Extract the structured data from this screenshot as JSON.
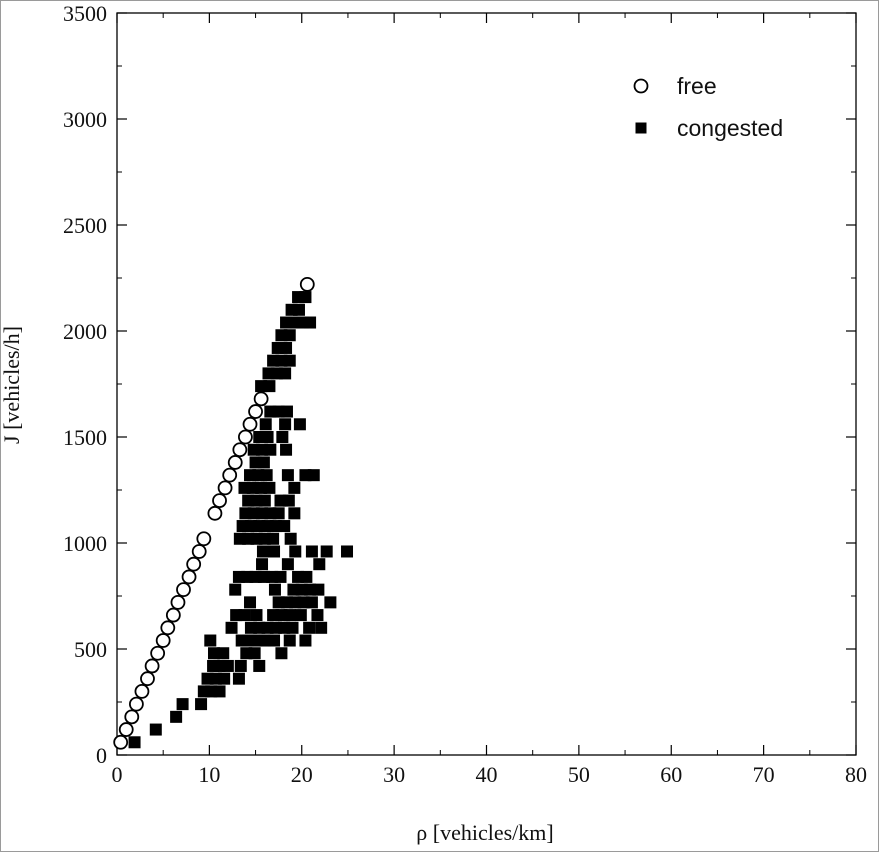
{
  "chart_data": {
    "type": "scatter",
    "xlabel": "ρ [vehicles/km]",
    "ylabel": "J [vehicles/h]",
    "xlim": [
      0,
      80
    ],
    "ylim": [
      0,
      3500
    ],
    "xticks": [
      0,
      10,
      20,
      30,
      40,
      50,
      60,
      70,
      80
    ],
    "yticks": [
      0,
      500,
      1000,
      1500,
      2000,
      2500,
      3000,
      3500
    ],
    "xtick_labels": [
      "0",
      "10",
      "20",
      "30",
      "40",
      "50",
      "60",
      "70",
      "80"
    ],
    "ytick_labels": [
      "0",
      "500",
      "1000",
      "1500",
      "2000",
      "2500",
      "3000",
      "3500"
    ],
    "grid": false,
    "legend_position": "top-right",
    "series": [
      {
        "name": "free",
        "marker": "open-circle",
        "color": "#000000",
        "points": [
          [
            0.4,
            60
          ],
          [
            1.0,
            120
          ],
          [
            1.6,
            180
          ],
          [
            2.1,
            240
          ],
          [
            2.7,
            300
          ],
          [
            3.3,
            360
          ],
          [
            3.8,
            420
          ],
          [
            4.4,
            480
          ],
          [
            5.0,
            540
          ],
          [
            5.5,
            600
          ],
          [
            6.1,
            660
          ],
          [
            6.6,
            720
          ],
          [
            7.2,
            780
          ],
          [
            7.8,
            840
          ],
          [
            8.3,
            900
          ],
          [
            8.9,
            960
          ],
          [
            9.4,
            1020
          ],
          [
            10.6,
            1140
          ],
          [
            11.1,
            1200
          ],
          [
            11.7,
            1260
          ],
          [
            12.2,
            1320
          ],
          [
            12.8,
            1380
          ],
          [
            13.3,
            1440
          ],
          [
            13.9,
            1500
          ],
          [
            14.4,
            1560
          ],
          [
            15.0,
            1620
          ],
          [
            15.6,
            1680
          ],
          [
            20.6,
            2220
          ]
        ]
      },
      {
        "name": "congested",
        "marker": "filled-square",
        "color": "#000000",
        "points": [
          [
            1.9,
            60
          ],
          [
            4.2,
            120
          ],
          [
            6.4,
            180
          ],
          [
            7.1,
            240
          ],
          [
            9.1,
            240
          ],
          [
            9.4,
            300
          ],
          [
            10.2,
            300
          ],
          [
            11.1,
            300
          ],
          [
            9.8,
            360
          ],
          [
            10.7,
            360
          ],
          [
            11.6,
            360
          ],
          [
            13.2,
            360
          ],
          [
            10.4,
            420
          ],
          [
            11.1,
            420
          ],
          [
            12.0,
            420
          ],
          [
            13.4,
            420
          ],
          [
            15.4,
            420
          ],
          [
            10.5,
            480
          ],
          [
            11.5,
            480
          ],
          [
            14.0,
            480
          ],
          [
            14.9,
            480
          ],
          [
            17.8,
            480
          ],
          [
            10.1,
            540
          ],
          [
            13.5,
            540
          ],
          [
            14.2,
            540
          ],
          [
            15.1,
            540
          ],
          [
            16.0,
            540
          ],
          [
            17.0,
            540
          ],
          [
            18.7,
            540
          ],
          [
            20.4,
            540
          ],
          [
            12.4,
            600
          ],
          [
            14.5,
            600
          ],
          [
            15.4,
            600
          ],
          [
            16.3,
            600
          ],
          [
            17.2,
            600
          ],
          [
            18.1,
            600
          ],
          [
            19.0,
            600
          ],
          [
            20.8,
            600
          ],
          [
            22.1,
            600
          ],
          [
            12.9,
            660
          ],
          [
            13.8,
            660
          ],
          [
            15.1,
            660
          ],
          [
            16.9,
            660
          ],
          [
            17.8,
            660
          ],
          [
            18.7,
            660
          ],
          [
            19.9,
            660
          ],
          [
            21.7,
            660
          ],
          [
            14.4,
            720
          ],
          [
            17.5,
            720
          ],
          [
            18.4,
            720
          ],
          [
            19.3,
            720
          ],
          [
            20.2,
            720
          ],
          [
            21.1,
            720
          ],
          [
            23.1,
            720
          ],
          [
            12.8,
            780
          ],
          [
            17.1,
            780
          ],
          [
            19.1,
            780
          ],
          [
            20.0,
            780
          ],
          [
            20.9,
            780
          ],
          [
            21.8,
            780
          ],
          [
            13.2,
            840
          ],
          [
            14.1,
            840
          ],
          [
            15.0,
            840
          ],
          [
            15.9,
            840
          ],
          [
            16.8,
            840
          ],
          [
            17.7,
            840
          ],
          [
            19.6,
            840
          ],
          [
            20.5,
            840
          ],
          [
            15.7,
            900
          ],
          [
            18.5,
            900
          ],
          [
            21.9,
            900
          ],
          [
            15.8,
            960
          ],
          [
            17.0,
            960
          ],
          [
            19.3,
            960
          ],
          [
            21.1,
            960
          ],
          [
            22.7,
            960
          ],
          [
            24.9,
            960
          ],
          [
            13.3,
            1020
          ],
          [
            14.2,
            1020
          ],
          [
            15.1,
            1020
          ],
          [
            16.0,
            1020
          ],
          [
            16.9,
            1020
          ],
          [
            18.8,
            1020
          ],
          [
            13.6,
            1080
          ],
          [
            14.5,
            1080
          ],
          [
            15.4,
            1080
          ],
          [
            16.3,
            1080
          ],
          [
            17.2,
            1080
          ],
          [
            18.1,
            1080
          ],
          [
            13.9,
            1140
          ],
          [
            14.8,
            1140
          ],
          [
            15.7,
            1140
          ],
          [
            16.6,
            1140
          ],
          [
            17.5,
            1140
          ],
          [
            19.2,
            1140
          ],
          [
            14.2,
            1200
          ],
          [
            15.1,
            1200
          ],
          [
            16.0,
            1200
          ],
          [
            17.7,
            1200
          ],
          [
            18.6,
            1200
          ],
          [
            13.8,
            1260
          ],
          [
            14.7,
            1260
          ],
          [
            15.6,
            1260
          ],
          [
            16.5,
            1260
          ],
          [
            19.2,
            1260
          ],
          [
            14.4,
            1320
          ],
          [
            15.3,
            1320
          ],
          [
            16.2,
            1320
          ],
          [
            18.5,
            1320
          ],
          [
            20.4,
            1320
          ],
          [
            21.3,
            1320
          ],
          [
            15.0,
            1380
          ],
          [
            15.9,
            1380
          ],
          [
            14.8,
            1440
          ],
          [
            15.7,
            1440
          ],
          [
            16.6,
            1440
          ],
          [
            18.3,
            1440
          ],
          [
            15.4,
            1500
          ],
          [
            16.3,
            1500
          ],
          [
            17.9,
            1500
          ],
          [
            16.1,
            1560
          ],
          [
            18.2,
            1560
          ],
          [
            19.8,
            1560
          ],
          [
            16.6,
            1620
          ],
          [
            17.5,
            1620
          ],
          [
            18.4,
            1620
          ],
          [
            15.6,
            1740
          ],
          [
            16.5,
            1740
          ],
          [
            16.4,
            1800
          ],
          [
            17.3,
            1800
          ],
          [
            18.2,
            1800
          ],
          [
            16.9,
            1860
          ],
          [
            17.8,
            1860
          ],
          [
            18.7,
            1860
          ],
          [
            17.4,
            1920
          ],
          [
            18.3,
            1920
          ],
          [
            17.8,
            1980
          ],
          [
            18.7,
            1980
          ],
          [
            18.3,
            2040
          ],
          [
            19.2,
            2040
          ],
          [
            20.1,
            2040
          ],
          [
            20.9,
            2040
          ],
          [
            18.9,
            2100
          ],
          [
            19.7,
            2100
          ],
          [
            19.6,
            2160
          ],
          [
            20.4,
            2160
          ]
        ]
      }
    ]
  }
}
